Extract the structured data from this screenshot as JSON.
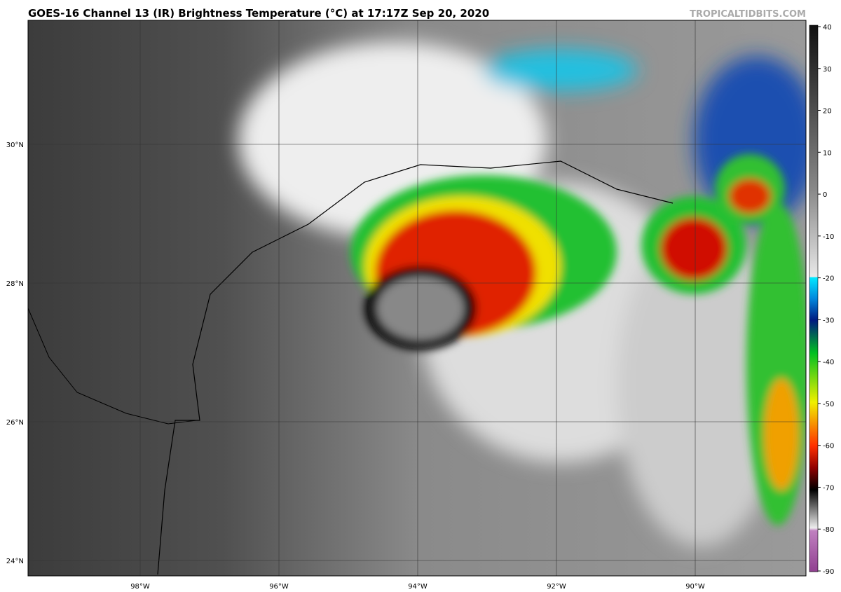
{
  "header": {
    "title": "GOES-16 Channel 13 (IR) Brightness Temperature (°C) at 17:17Z Sep 20, 2020",
    "site": "TROPICALTIDBITS.COM"
  },
  "map": {
    "lat_labels": [
      "30°N",
      "28°N",
      "26°N",
      "24°N"
    ],
    "lon_labels": [
      "98°W",
      "96°W",
      "94°W",
      "92°W",
      "90°W"
    ]
  },
  "colorbar": {
    "ticks": [
      "40",
      "30",
      "20",
      "10",
      "0",
      "-10",
      "-20",
      "-30",
      "-40",
      "-50",
      "-60",
      "-70",
      "-80",
      "-90"
    ]
  }
}
